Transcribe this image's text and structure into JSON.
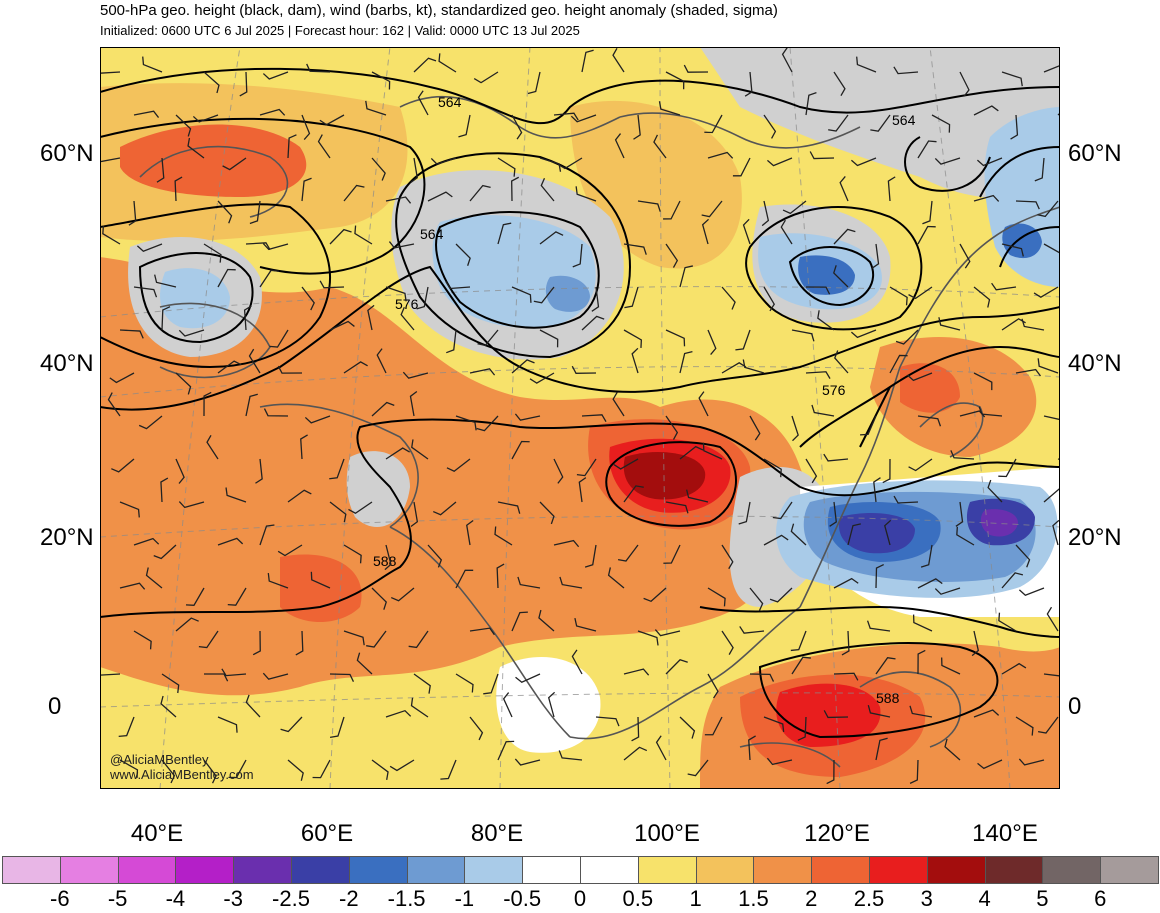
{
  "header": {
    "title": "500-hPa geo. height (black, dam), wind (barbs, kt), standardized geo. height anomaly (shaded, sigma)",
    "subtitle": "Initialized: 0600 UTC 6 Jul 2025 | Forecast hour: 162 | Valid: 0000 UTC 13 Jul 2025"
  },
  "axes": {
    "lat_labels": [
      "60°N",
      "40°N",
      "20°N",
      "0"
    ],
    "lon_labels": [
      "40°E",
      "60°E",
      "80°E",
      "100°E",
      "120°E",
      "140°E"
    ]
  },
  "contour_labels": [
    "564",
    "564",
    "564",
    "576",
    "576",
    "588",
    "588"
  ],
  "credit": {
    "handle": "@AliciaMBentley",
    "site": "www.AliciaMBentley.com"
  },
  "colorbar": {
    "labels": [
      "-6",
      "-5",
      "-4",
      "-3",
      "-2.5",
      "-2",
      "-1.5",
      "-1",
      "-0.5",
      "0",
      "0.5",
      "1",
      "1.5",
      "2",
      "2.5",
      "3",
      "4",
      "5",
      "6"
    ],
    "colors": [
      "#e8b6e6",
      "#e57fe2",
      "#d54ad6",
      "#b41fc8",
      "#6a2fae",
      "#3a3fa6",
      "#3a6fc0",
      "#6e9bd2",
      "#a9cbe8",
      "#ffffff",
      "#ffffff",
      "#f7e26b",
      "#f3c25c",
      "#f09148",
      "#ee6434",
      "#e81e1e",
      "#a30d0d",
      "#6e2a2a",
      "#726565",
      "#a59b9b"
    ]
  }
}
